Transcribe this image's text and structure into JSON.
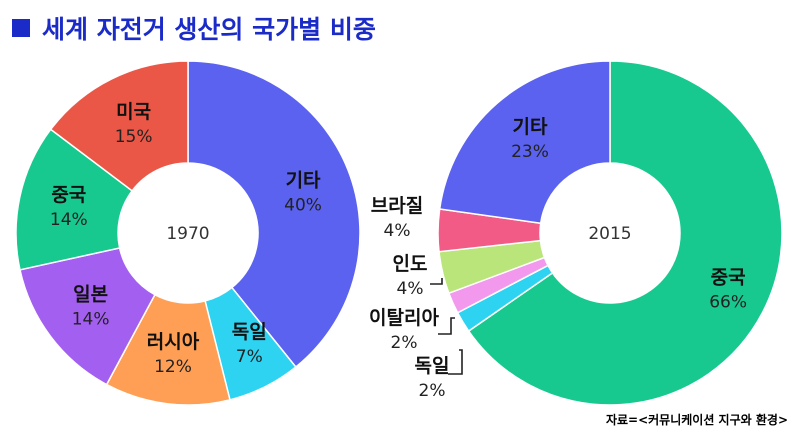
{
  "title": "세계 자전거 생산의 국가별 비중",
  "source": "자료=<커뮤니케이션 지구와 환경>",
  "colors": {
    "title": "#1a2bc8",
    "기타": "#5b62ef",
    "독일": "#2ed3f2",
    "러시아": "#ff9f55",
    "일본": "#a35ff0",
    "중국": "#17c98f",
    "미국": "#eb5747",
    "브라질": "#f25b86",
    "인도": "#b9e57a",
    "이탈리아": "#f299ee"
  },
  "chart_data": [
    {
      "type": "pie",
      "center_label": "1970",
      "unit": "%",
      "categories": [
        "기타",
        "독일",
        "러시아",
        "일본",
        "중국",
        "미국"
      ],
      "values": [
        40,
        7,
        12,
        14,
        14,
        15
      ]
    },
    {
      "type": "pie",
      "center_label": "2015",
      "unit": "%",
      "categories": [
        "중국",
        "독일",
        "이탈리아",
        "인도",
        "브라질",
        "기타"
      ],
      "values": [
        66,
        2,
        2,
        4,
        4,
        23
      ]
    }
  ]
}
